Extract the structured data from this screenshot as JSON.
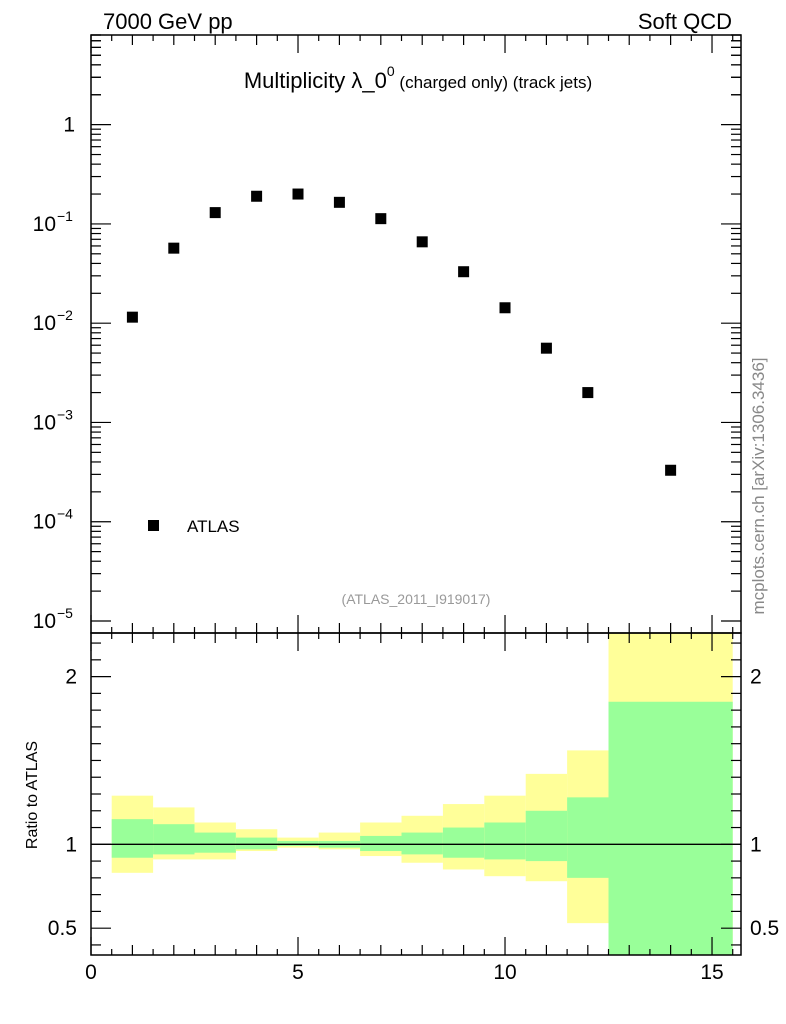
{
  "header": {
    "left": "7000 GeV pp",
    "right": "Soft QCD"
  },
  "side_label": "mcplots.cern.ch [arXiv:1306.3436]",
  "chart_data": [
    {
      "type": "scatter",
      "title_main": "Multiplicity λ_0",
      "title_sup": "0",
      "title_rest": " (charged only) (track jets)",
      "analysis": "(ATLAS_2011_I919017)",
      "yscale": "log",
      "xlim": [
        0,
        15.7
      ],
      "ylim": [
        1e-05,
        8
      ],
      "y_ticks": [
        {
          "value": 1,
          "label": "1"
        },
        {
          "value": 0.1,
          "label": "10",
          "exp": "−1"
        },
        {
          "value": 0.01,
          "label": "10",
          "exp": "−2"
        },
        {
          "value": 0.001,
          "label": "10",
          "exp": "−3"
        },
        {
          "value": 0.0001,
          "label": "10",
          "exp": "−4"
        },
        {
          "value": 1e-05,
          "label": "10",
          "exp": "−5"
        }
      ],
      "legend": [
        {
          "name": "ATLAS",
          "marker": "square"
        }
      ],
      "series": [
        {
          "name": "ATLAS",
          "x": [
            1,
            2,
            3,
            4,
            5,
            6,
            7,
            8,
            9,
            10,
            11,
            12,
            14
          ],
          "y": [
            0.0115,
            0.057,
            0.13,
            0.19,
            0.2,
            0.165,
            0.113,
            0.066,
            0.033,
            0.0143,
            0.0056,
            0.002,
            0.00033
          ]
        }
      ]
    },
    {
      "type": "area",
      "ylabel": "Ratio to ATLAS",
      "xlim": [
        0,
        15.7
      ],
      "ylim": [
        0.34,
        2.26
      ],
      "x_ticks": [
        {
          "value": 0,
          "label": "0"
        },
        {
          "value": 5,
          "label": "5"
        },
        {
          "value": 10,
          "label": "10"
        },
        {
          "value": 15,
          "label": "15"
        }
      ],
      "y_ticks": [
        {
          "value": 2,
          "label": "2"
        },
        {
          "value": 1,
          "label": "1"
        },
        {
          "value": 0.5,
          "label": "0.5"
        }
      ],
      "reference_line": 1,
      "bands": [
        {
          "x0": 0.5,
          "x1": 1.5,
          "stat_lo": 0.92,
          "stat_hi": 1.15,
          "tot_lo": 0.83,
          "tot_hi": 1.29
        },
        {
          "x0": 1.5,
          "x1": 2.5,
          "stat_lo": 0.94,
          "stat_hi": 1.12,
          "tot_lo": 0.91,
          "tot_hi": 1.22
        },
        {
          "x0": 2.5,
          "x1": 3.5,
          "stat_lo": 0.95,
          "stat_hi": 1.07,
          "tot_lo": 0.91,
          "tot_hi": 1.13
        },
        {
          "x0": 3.5,
          "x1": 4.5,
          "stat_lo": 0.97,
          "stat_hi": 1.04,
          "tot_lo": 0.96,
          "tot_hi": 1.09
        },
        {
          "x0": 4.5,
          "x1": 5.5,
          "stat_lo": 0.99,
          "stat_hi": 1.02,
          "tot_lo": 0.98,
          "tot_hi": 1.04
        },
        {
          "x0": 5.5,
          "x1": 6.5,
          "stat_lo": 0.98,
          "stat_hi": 1.02,
          "tot_lo": 0.97,
          "tot_hi": 1.07
        },
        {
          "x0": 6.5,
          "x1": 7.5,
          "stat_lo": 0.96,
          "stat_hi": 1.05,
          "tot_lo": 0.93,
          "tot_hi": 1.13
        },
        {
          "x0": 7.5,
          "x1": 8.5,
          "stat_lo": 0.94,
          "stat_hi": 1.07,
          "tot_lo": 0.89,
          "tot_hi": 1.17
        },
        {
          "x0": 8.5,
          "x1": 9.5,
          "stat_lo": 0.92,
          "stat_hi": 1.1,
          "tot_lo": 0.85,
          "tot_hi": 1.24
        },
        {
          "x0": 9.5,
          "x1": 10.5,
          "stat_lo": 0.91,
          "stat_hi": 1.13,
          "tot_lo": 0.81,
          "tot_hi": 1.29
        },
        {
          "x0": 10.5,
          "x1": 11.5,
          "stat_lo": 0.9,
          "stat_hi": 1.2,
          "tot_lo": 0.78,
          "tot_hi": 1.42
        },
        {
          "x0": 11.5,
          "x1": 12.5,
          "stat_lo": 0.8,
          "stat_hi": 1.28,
          "tot_lo": 0.53,
          "tot_hi": 1.56
        },
        {
          "x0": 12.5,
          "x1": 15.5,
          "stat_lo": 0.34,
          "stat_hi": 1.85,
          "tot_lo": 0.34,
          "tot_hi": 2.26
        }
      ],
      "colors": {
        "stat": "#99ff99",
        "total": "#ffff99"
      }
    }
  ]
}
